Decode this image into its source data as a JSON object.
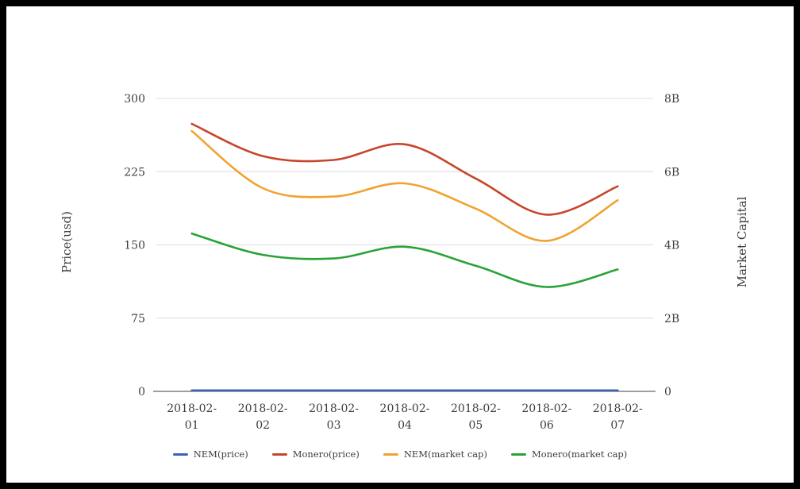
{
  "frame": {
    "background": "#ffffff",
    "border_color": "#000000"
  },
  "chart_data": {
    "type": "line",
    "smooth": true,
    "grid": true,
    "legend_position": "bottom",
    "title": "",
    "categories": [
      "2018-02-01",
      "2018-02-02",
      "2018-02-03",
      "2018-02-04",
      "2018-02-05",
      "2018-02-06",
      "2018-02-07"
    ],
    "left_axis": {
      "title": "Price(usd)",
      "range": [
        0,
        300
      ],
      "ticks": [
        {
          "value": 0,
          "label": "0"
        },
        {
          "value": 75,
          "label": "75"
        },
        {
          "value": 150,
          "label": "150"
        },
        {
          "value": 225,
          "label": "225"
        },
        {
          "value": 300,
          "label": "300"
        }
      ]
    },
    "right_axis": {
      "title": "Market Capital",
      "unit": "billions",
      "range": [
        0,
        8
      ],
      "ticks": [
        {
          "value": 0,
          "label": "0"
        },
        {
          "value": 2,
          "label": "2B"
        },
        {
          "value": 4,
          "label": "4B"
        },
        {
          "value": 6,
          "label": "6B"
        },
        {
          "value": 8,
          "label": "8B"
        }
      ]
    },
    "series": [
      {
        "name": "NEM(price)",
        "axis": "left",
        "color": "#3d64b4",
        "values": [
          1,
          1,
          1,
          1,
          1,
          1,
          1
        ]
      },
      {
        "name": "Monero(price)",
        "axis": "left",
        "color": "#c7452b",
        "values": [
          274,
          241,
          237,
          253,
          218,
          181,
          210
        ]
      },
      {
        "name": "NEM(market cap)",
        "axis": "right",
        "color": "#f0a330",
        "values": [
          7.11,
          5.55,
          5.32,
          5.68,
          4.99,
          4.11,
          5.22
        ]
      },
      {
        "name": "Monero(market cap)",
        "axis": "right",
        "color": "#27a338",
        "values": [
          4.31,
          3.73,
          3.63,
          3.95,
          3.43,
          2.85,
          3.33
        ]
      }
    ],
    "style": {
      "gridline_color": "#dcdcdc",
      "axisline_color": "#3f3f3f",
      "text_color": "#3c3c3c"
    }
  }
}
